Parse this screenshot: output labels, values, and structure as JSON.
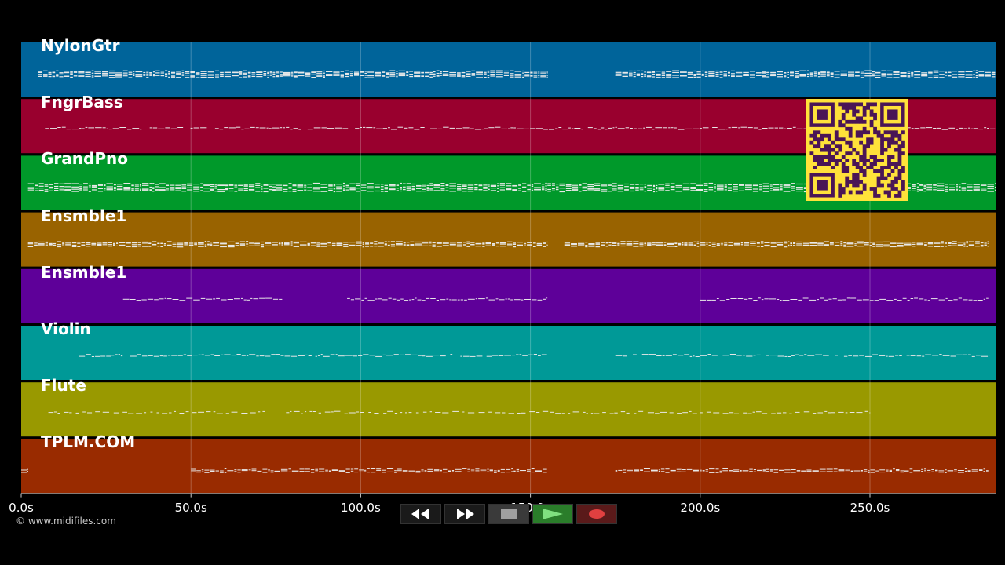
{
  "tracks": [
    {
      "name": "NylonGtr",
      "color": "#00649a"
    },
    {
      "name": "FngrBass",
      "color": "#99002e"
    },
    {
      "name": "GrandPno",
      "color": "#00992a"
    },
    {
      "name": "Ensmble1",
      "color": "#996300"
    },
    {
      "name": "Ensmble1",
      "color": "#5e0099"
    },
    {
      "name": "Violin",
      "color": "#009997"
    },
    {
      "name": "Flute",
      "color": "#999900"
    },
    {
      "name": "TPLM.COM",
      "color": "#992b00"
    }
  ],
  "time_axis": {
    "max_seconds": 287,
    "ticks": [
      {
        "value": 0,
        "label": "0.0s"
      },
      {
        "value": 50,
        "label": "50.0s"
      },
      {
        "value": 100,
        "label": "100.0s"
      },
      {
        "value": 150,
        "label": "150.0s"
      },
      {
        "value": 200,
        "label": "200.0s"
      },
      {
        "value": 250,
        "label": "250.0s"
      }
    ]
  },
  "copyright": "© www.midifiles.com",
  "transport": {
    "rewind_icon": "rewind-icon",
    "forward_icon": "fast-forward-icon",
    "stop_icon": "stop-icon",
    "play_icon": "play-icon",
    "record_icon": "record-icon"
  },
  "qr_color": "#ffe23a"
}
